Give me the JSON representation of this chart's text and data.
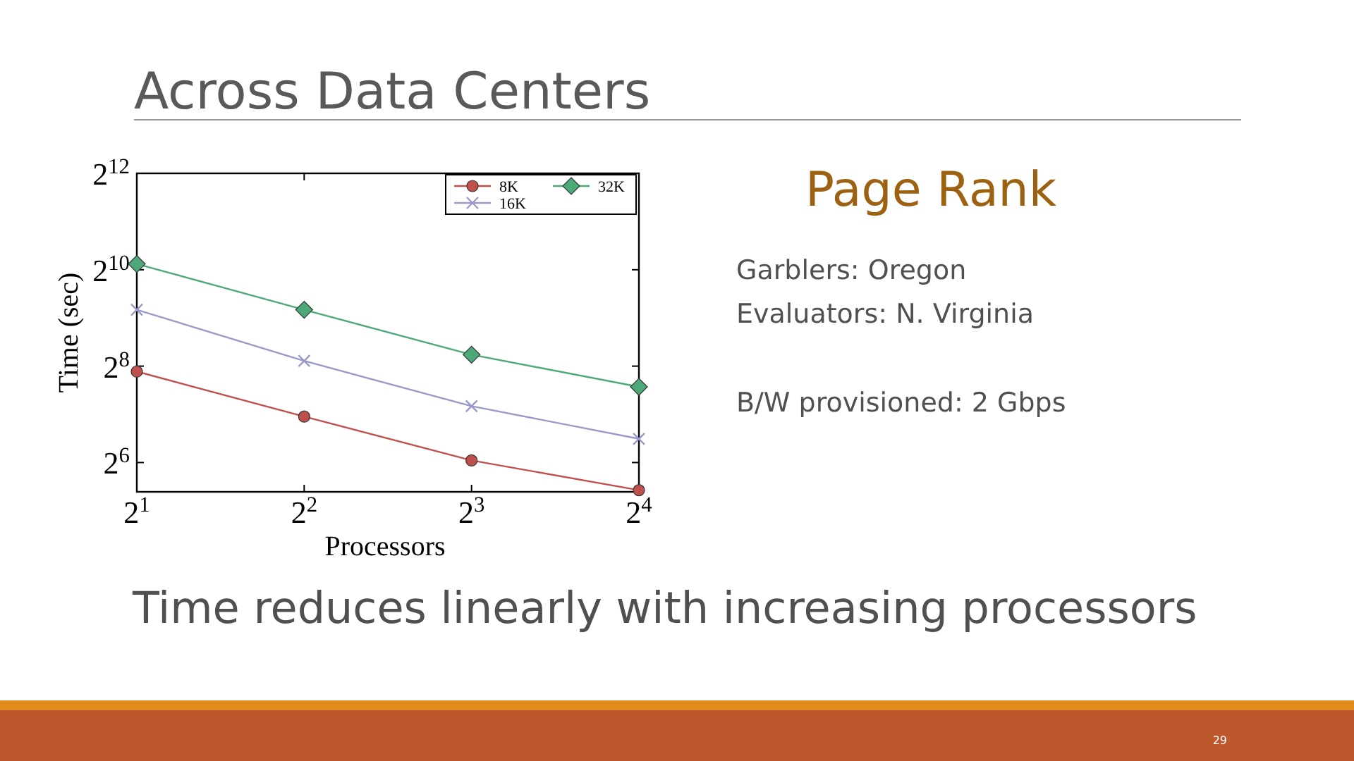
{
  "chart_data": {
    "type": "line",
    "title": "Across Data Centers",
    "subtitle": "Page Rank",
    "annotations": [
      "Garblers: Oregon",
      "Evaluators: N. Virginia",
      "B/W provisioned: 2 Gbps",
      "Time reduces linearly with increasing processors",
      "29"
    ],
    "xlabel": "Processors",
    "ylabel": "Time (sec)",
    "log": "xy",
    "x": [
      2,
      4,
      8,
      16
    ],
    "xlim": [
      2,
      16
    ],
    "xticks": [
      {
        "value": 2,
        "label": "2$^{1}$"
      },
      {
        "value": 4,
        "label": "2$^{2}$"
      },
      {
        "value": 8,
        "label": "2$^{3}$"
      },
      {
        "value": 16,
        "label": "2$^{4}$"
      }
    ],
    "ylim": [
      42,
      4096
    ],
    "yticks": [
      {
        "value": 64,
        "label": "2$^{6}$"
      },
      {
        "value": 256,
        "label": "2$^{8}$"
      },
      {
        "value": 1024,
        "label": "2$^{10}$"
      },
      {
        "value": 4096,
        "label": "2$^{12}$"
      }
    ],
    "series": [
      {
        "name": "8K",
        "color": "#c0504d",
        "marker": "circle",
        "values": [
          237,
          124,
          66,
          43
        ]
      },
      {
        "name": "16K",
        "color": "#9a9ac8",
        "marker": "cross",
        "values": [
          576,
          276,
          144,
          90
        ]
      },
      {
        "name": "32K",
        "color": "#4daa78",
        "marker": "diamond",
        "values": [
          1113,
          576,
          302,
          190
        ]
      }
    ],
    "legend": "top right",
    "grid": false,
    "line_style": "solid"
  }
}
